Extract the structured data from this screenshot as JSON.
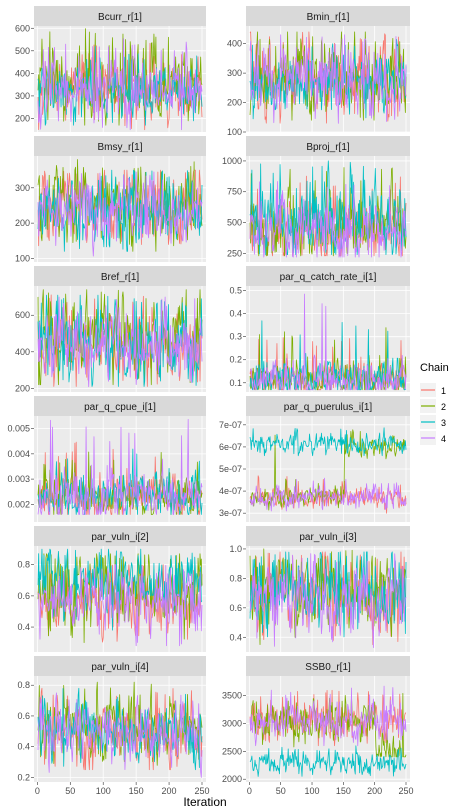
{
  "colors": {
    "chain_1": "#F8766D",
    "chain_2": "#7CAE00",
    "chain_3": "#00BFC4",
    "chain_4": "#C77CFF",
    "panel_background": "#EBEBEB",
    "strip_background": "#D9D9D9",
    "grid_major": "#FFFFFF"
  },
  "chart_data": {
    "type": "line",
    "xlabel": "Iteration",
    "legend": {
      "title": "Chain",
      "position": "right",
      "entries": [
        "1",
        "2",
        "3",
        "4"
      ]
    },
    "grid": true,
    "x_range": [
      1,
      250
    ],
    "x_ticks": [
      0,
      50,
      100,
      150,
      200,
      250
    ],
    "x_tick_labels": [
      "0",
      "50",
      "100",
      "150",
      "200",
      "250"
    ],
    "panels": [
      {
        "title": "Bcurr_r[1]",
        "ylim": [
          140,
          610
        ],
        "y_ticks": [
          200,
          300,
          400,
          500,
          600
        ],
        "y_tick_labels": [
          "200",
          "300",
          "400",
          "500",
          "600"
        ],
        "series": [
          {
            "name": "1",
            "mean": 330,
            "sd": 70,
            "min": 150,
            "max": 540
          },
          {
            "name": "2",
            "mean": 350,
            "sd": 80,
            "min": 170,
            "max": 600
          },
          {
            "name": "3",
            "mean": 320,
            "sd": 65,
            "min": 170,
            "max": 520
          },
          {
            "name": "4",
            "mean": 330,
            "sd": 70,
            "min": 150,
            "max": 560
          }
        ]
      },
      {
        "title": "Bmin_r[1]",
        "ylim": [
          100,
          460
        ],
        "y_ticks": [
          100,
          200,
          300,
          400
        ],
        "y_tick_labels": [
          "100",
          "200",
          "300",
          "400"
        ],
        "series": [
          {
            "name": "1",
            "mean": 280,
            "sd": 60,
            "min": 130,
            "max": 440
          },
          {
            "name": "2",
            "mean": 290,
            "sd": 65,
            "min": 140,
            "max": 440
          },
          {
            "name": "3",
            "mean": 270,
            "sd": 55,
            "min": 130,
            "max": 420
          },
          {
            "name": "4",
            "mean": 270,
            "sd": 60,
            "min": 110,
            "max": 430
          }
        ]
      },
      {
        "title": "Bmsy_r[1]",
        "ylim": [
          90,
          390
        ],
        "y_ticks": [
          100,
          200,
          300
        ],
        "y_tick_labels": [
          "100",
          "200",
          "300"
        ],
        "series": [
          {
            "name": "1",
            "mean": 240,
            "sd": 50,
            "min": 110,
            "max": 350
          },
          {
            "name": "2",
            "mean": 250,
            "sd": 55,
            "min": 120,
            "max": 380
          },
          {
            "name": "3",
            "mean": 245,
            "sd": 50,
            "min": 120,
            "max": 350
          },
          {
            "name": "4",
            "mean": 235,
            "sd": 50,
            "min": 100,
            "max": 345
          }
        ]
      },
      {
        "title": "Bproj_r[1]",
        "ylim": [
          180,
          1040
        ],
        "y_ticks": [
          250,
          500,
          750,
          1000
        ],
        "y_tick_labels": [
          "250",
          "500",
          "750",
          "1000"
        ],
        "series": [
          {
            "name": "1",
            "mean": 450,
            "sd": 120,
            "min": 230,
            "max": 900
          },
          {
            "name": "2",
            "mean": 470,
            "sd": 130,
            "min": 230,
            "max": 950
          },
          {
            "name": "3",
            "mean": 520,
            "sd": 150,
            "min": 240,
            "max": 1000
          },
          {
            "name": "4",
            "mean": 430,
            "sd": 110,
            "min": 220,
            "max": 850
          }
        ]
      },
      {
        "title": "Bref_r[1]",
        "ylim": [
          180,
          760
        ],
        "y_ticks": [
          200,
          400,
          600
        ],
        "y_tick_labels": [
          "200",
          "400",
          "600"
        ],
        "series": [
          {
            "name": "1",
            "mean": 460,
            "sd": 100,
            "min": 210,
            "max": 720
          },
          {
            "name": "2",
            "mean": 480,
            "sd": 110,
            "min": 220,
            "max": 740
          },
          {
            "name": "3",
            "mean": 450,
            "sd": 100,
            "min": 210,
            "max": 710
          },
          {
            "name": "4",
            "mean": 440,
            "sd": 100,
            "min": 200,
            "max": 700
          }
        ]
      },
      {
        "title": "par_q_catch_rate_i[1]",
        "ylim": [
          0.06,
          0.52
        ],
        "y_ticks": [
          0.1,
          0.2,
          0.3,
          0.4,
          0.5
        ],
        "y_tick_labels": [
          "0.1",
          "0.2",
          "0.3",
          "0.4",
          "0.5"
        ],
        "series": [
          {
            "name": "1",
            "mean": 0.115,
            "sd": 0.035,
            "min": 0.07,
            "max": 0.3
          },
          {
            "name": "2",
            "mean": 0.12,
            "sd": 0.04,
            "min": 0.07,
            "max": 0.34
          },
          {
            "name": "3",
            "mean": 0.12,
            "sd": 0.04,
            "min": 0.07,
            "max": 0.37
          },
          {
            "name": "4",
            "mean": 0.115,
            "sd": 0.04,
            "min": 0.07,
            "max": 0.49
          }
        ]
      },
      {
        "title": "par_q_cpue_i[1]",
        "ylim": [
          0.0013,
          0.0055
        ],
        "y_ticks": [
          0.002,
          0.003,
          0.004,
          0.005
        ],
        "y_tick_labels": [
          "0.002",
          "0.003",
          "0.004",
          "0.005"
        ],
        "series": [
          {
            "name": "1",
            "mean": 0.0023,
            "sd": 0.0004,
            "min": 0.0016,
            "max": 0.0045
          },
          {
            "name": "2",
            "mean": 0.0023,
            "sd": 0.0004,
            "min": 0.0016,
            "max": 0.0041
          },
          {
            "name": "3",
            "mean": 0.0024,
            "sd": 0.00045,
            "min": 0.0016,
            "max": 0.0042
          },
          {
            "name": "4",
            "mean": 0.0023,
            "sd": 0.00045,
            "min": 0.0016,
            "max": 0.0054
          }
        ]
      },
      {
        "title": "par_q_puerulus_i[1]",
        "ylim": [
          2.6e-07,
          7.4e-07
        ],
        "y_ticks": [
          3e-07,
          4e-07,
          5e-07,
          6e-07,
          7e-07
        ],
        "y_tick_labels": [
          "3e-07",
          "4e-07",
          "5e-07",
          "6e-07",
          "7e-07"
        ],
        "series": [
          {
            "name": "1",
            "mean": 3.7e-07,
            "sd": 2.5e-08,
            "min": 3e-07,
            "max": 4.7e-07
          },
          {
            "name": "2",
            "mean": 3.8e-07,
            "sd": 2.5e-08,
            "min": 3.1e-07,
            "max": 6.8e-07,
            "note": "second half near 6e-07"
          },
          {
            "name": "3",
            "mean": 6.1e-07,
            "sd": 2.5e-08,
            "min": 5.6e-07,
            "max": 7e-07
          },
          {
            "name": "4",
            "mean": 3.7e-07,
            "sd": 2.5e-08,
            "min": 3.1e-07,
            "max": 4.6e-07
          }
        ]
      },
      {
        "title": "par_vuln_i[2]",
        "ylim": [
          0.24,
          0.92
        ],
        "y_ticks": [
          0.4,
          0.6,
          0.8
        ],
        "y_tick_labels": [
          "0.4",
          "0.6",
          "0.8"
        ],
        "series": [
          {
            "name": "1",
            "mean": 0.55,
            "sd": 0.1,
            "min": 0.3,
            "max": 0.8
          },
          {
            "name": "2",
            "mean": 0.62,
            "sd": 0.12,
            "min": 0.3,
            "max": 0.87
          },
          {
            "name": "3",
            "mean": 0.7,
            "sd": 0.1,
            "min": 0.38,
            "max": 0.9
          },
          {
            "name": "4",
            "mean": 0.55,
            "sd": 0.1,
            "min": 0.28,
            "max": 0.8
          }
        ]
      },
      {
        "title": "par_vuln_i[3]",
        "ylim": [
          0.3,
          1.02
        ],
        "y_ticks": [
          0.4,
          0.6,
          0.8,
          1.0
        ],
        "y_tick_labels": [
          "0.4",
          "0.6",
          "0.8",
          "1.0"
        ],
        "series": [
          {
            "name": "1",
            "mean": 0.68,
            "sd": 0.12,
            "min": 0.35,
            "max": 0.98
          },
          {
            "name": "2",
            "mean": 0.7,
            "sd": 0.13,
            "min": 0.35,
            "max": 1.0
          },
          {
            "name": "3",
            "mean": 0.7,
            "sd": 0.12,
            "min": 0.36,
            "max": 0.98
          },
          {
            "name": "4",
            "mean": 0.66,
            "sd": 0.12,
            "min": 0.33,
            "max": 0.97
          }
        ]
      },
      {
        "title": "par_vuln_i[4]",
        "ylim": [
          0.17,
          0.86
        ],
        "y_ticks": [
          0.2,
          0.4,
          0.6,
          0.8
        ],
        "y_tick_labels": [
          "0.2",
          "0.4",
          "0.6",
          "0.8"
        ],
        "series": [
          {
            "name": "1",
            "mean": 0.5,
            "sd": 0.1,
            "min": 0.25,
            "max": 0.78
          },
          {
            "name": "2",
            "mean": 0.52,
            "sd": 0.11,
            "min": 0.25,
            "max": 0.82
          },
          {
            "name": "3",
            "mean": 0.5,
            "sd": 0.1,
            "min": 0.25,
            "max": 0.78
          },
          {
            "name": "4",
            "mean": 0.48,
            "sd": 0.1,
            "min": 0.2,
            "max": 0.75
          }
        ]
      },
      {
        "title": "SSB0_r[1]",
        "ylim": [
          1950,
          3850
        ],
        "y_ticks": [
          2000,
          2500,
          3000,
          3500
        ],
        "y_tick_labels": [
          "2000",
          "2500",
          "3000",
          "3500"
        ],
        "series": [
          {
            "name": "1",
            "mean": 3050,
            "sd": 180,
            "min": 2600,
            "max": 3600
          },
          {
            "name": "2",
            "mean": 3050,
            "sd": 180,
            "min": 2400,
            "max": 3600,
            "note": "last ~50 iterations near 2500"
          },
          {
            "name": "3",
            "mean": 2300,
            "sd": 100,
            "min": 2050,
            "max": 2600
          },
          {
            "name": "4",
            "mean": 3050,
            "sd": 180,
            "min": 2600,
            "max": 3700
          }
        ]
      }
    ]
  }
}
